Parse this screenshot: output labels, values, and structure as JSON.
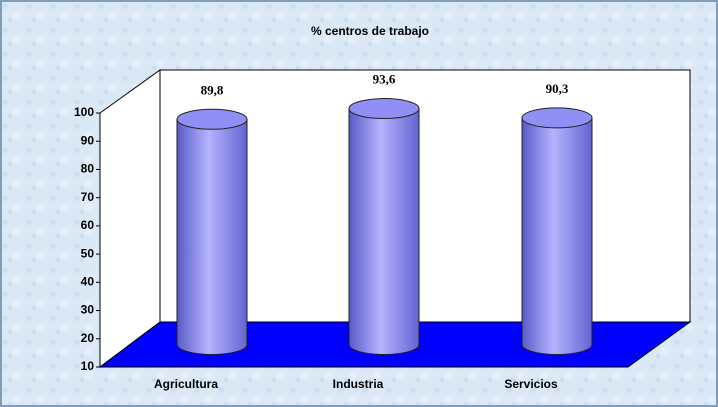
{
  "chart_data": {
    "type": "bar",
    "title": "% centros de trabajo",
    "categories": [
      "Agricultura",
      "Industria",
      "Servicios"
    ],
    "values": [
      89.8,
      93.6,
      90.3
    ],
    "value_labels": [
      "89,8",
      "93,6",
      "90,3"
    ],
    "color": "#8c8cf0",
    "floor_color": "#0000ff",
    "ylim": [
      10,
      100
    ],
    "yticks": [
      10,
      20,
      30,
      40,
      50,
      60,
      70,
      80,
      90,
      100
    ],
    "grid": false
  }
}
